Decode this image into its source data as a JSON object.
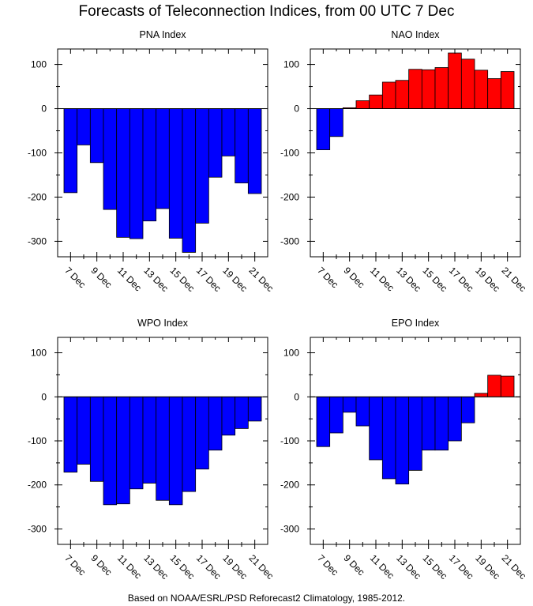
{
  "title": "Forecasts of Teleconnection Indices, from 00 UTC 7 Dec",
  "footer": "Based on NOAA/ESRL/PSD Reforecast2 Climatology, 1985-2012.",
  "colors": {
    "negative": "#0000ff",
    "positive": "#ff0000",
    "frame": "#000000"
  },
  "chart_data": [
    {
      "type": "bar",
      "title": "PNA Index",
      "ylim": [
        -335,
        135
      ],
      "yticks": [
        "100",
        "0",
        "-100",
        "-200",
        "-300"
      ],
      "xticks": [
        "7 Dec",
        "9 Dec",
        "11 Dec",
        "13 Dec",
        "15 Dec",
        "17 Dec",
        "19 Dec",
        "21 Dec"
      ],
      "categories": [
        "7 Dec",
        "8 Dec",
        "9 Dec",
        "10 Dec",
        "11 Dec",
        "12 Dec",
        "13 Dec",
        "14 Dec",
        "15 Dec",
        "16 Dec",
        "17 Dec",
        "18 Dec",
        "19 Dec",
        "20 Dec",
        "21 Dec"
      ],
      "values": [
        -190,
        -82,
        -122,
        -228,
        -291,
        -294,
        -254,
        -226,
        -293,
        -325,
        -259,
        -155,
        -107,
        -168,
        -192
      ]
    },
    {
      "type": "bar",
      "title": "NAO Index",
      "ylim": [
        -335,
        135
      ],
      "yticks": [
        "100",
        "0",
        "-100",
        "-200",
        "-300"
      ],
      "xticks": [
        "7 Dec",
        "9 Dec",
        "11 Dec",
        "13 Dec",
        "15 Dec",
        "17 Dec",
        "19 Dec",
        "21 Dec"
      ],
      "categories": [
        "7 Dec",
        "8 Dec",
        "9 Dec",
        "10 Dec",
        "11 Dec",
        "12 Dec",
        "13 Dec",
        "14 Dec",
        "15 Dec",
        "16 Dec",
        "17 Dec",
        "18 Dec",
        "19 Dec",
        "20 Dec",
        "21 Dec"
      ],
      "values": [
        -93,
        -63,
        2,
        18,
        31,
        60,
        64,
        89,
        88,
        93,
        126,
        112,
        87,
        68,
        84
      ]
    },
    {
      "type": "bar",
      "title": "WPO Index",
      "ylim": [
        -335,
        135
      ],
      "yticks": [
        "100",
        "0",
        "-100",
        "-200",
        "-300"
      ],
      "xticks": [
        "7 Dec",
        "9 Dec",
        "11 Dec",
        "13 Dec",
        "15 Dec",
        "17 Dec",
        "19 Dec",
        "21 Dec"
      ],
      "categories": [
        "7 Dec",
        "8 Dec",
        "9 Dec",
        "10 Dec",
        "11 Dec",
        "12 Dec",
        "13 Dec",
        "14 Dec",
        "15 Dec",
        "16 Dec",
        "17 Dec",
        "18 Dec",
        "19 Dec",
        "20 Dec",
        "21 Dec"
      ],
      "values": [
        -171,
        -153,
        -192,
        -245,
        -243,
        -209,
        -196,
        -235,
        -245,
        -215,
        -164,
        -121,
        -87,
        -72,
        -55
      ]
    },
    {
      "type": "bar",
      "title": "EPO Index",
      "ylim": [
        -335,
        135
      ],
      "yticks": [
        "100",
        "0",
        "-100",
        "-200",
        "-300"
      ],
      "xticks": [
        "7 Dec",
        "9 Dec",
        "11 Dec",
        "13 Dec",
        "15 Dec",
        "17 Dec",
        "19 Dec",
        "21 Dec"
      ],
      "categories": [
        "7 Dec",
        "8 Dec",
        "9 Dec",
        "10 Dec",
        "11 Dec",
        "12 Dec",
        "13 Dec",
        "14 Dec",
        "15 Dec",
        "16 Dec",
        "17 Dec",
        "18 Dec",
        "19 Dec",
        "20 Dec",
        "21 Dec"
      ],
      "values": [
        -113,
        -82,
        -35,
        -66,
        -143,
        -186,
        -198,
        -167,
        -121,
        -121,
        -100,
        -59,
        8,
        49,
        47
      ]
    }
  ]
}
